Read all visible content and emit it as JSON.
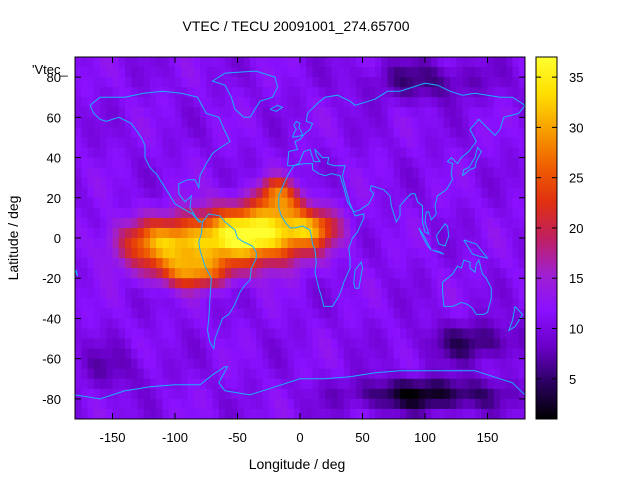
{
  "chart_data": {
    "type": "heatmap",
    "title": "VTEC / TECU 20091001_274.65700",
    "xlabel": "Longitude / deg",
    "ylabel": "Latitude / deg",
    "legend_label": "'Vtec_",
    "legend_position": "top-left",
    "xlim": [
      -180,
      180
    ],
    "ylim": [
      -90,
      90
    ],
    "x_ticks": [
      -150,
      -100,
      -50,
      0,
      50,
      100,
      150
    ],
    "y_ticks": [
      -80,
      -60,
      -40,
      -20,
      0,
      20,
      40,
      60,
      80
    ],
    "colorbar": {
      "range": [
        1,
        37
      ],
      "ticks": [
        5,
        10,
        15,
        20,
        25,
        30,
        35
      ],
      "palette": [
        "#000000",
        "#2b0060",
        "#6a00c8",
        "#8a10ff",
        "#a020d0",
        "#c02060",
        "#e03010",
        "#f06000",
        "#f8a000",
        "#ffe000",
        "#ffff30"
      ]
    },
    "grid_step_deg": 5,
    "hotspots": [
      {
        "lon": -35,
        "lat": 2,
        "peak": 27,
        "sx": 45,
        "sy": 14
      },
      {
        "lon": -105,
        "lat": -3,
        "peak": 19,
        "sx": 40,
        "sy": 12
      },
      {
        "lon": -85,
        "lat": -17,
        "peak": 14,
        "sx": 30,
        "sy": 8
      },
      {
        "lon": -15,
        "lat": 18,
        "peak": 10,
        "sx": 18,
        "sy": 8
      },
      {
        "lon": 10,
        "lat": 5,
        "peak": 10,
        "sx": 20,
        "sy": 8
      },
      {
        "lon": -20,
        "lat": 25,
        "peak": 8,
        "sx": 12,
        "sy": 6
      }
    ],
    "coolspots": [
      {
        "lon": 100,
        "lat": -78,
        "depth": 9,
        "sx": 60,
        "sy": 8
      },
      {
        "lon": 140,
        "lat": -52,
        "depth": 6,
        "sx": 40,
        "sy": 10
      },
      {
        "lon": 100,
        "lat": 78,
        "depth": 5,
        "sx": 50,
        "sy": 10
      },
      {
        "lon": -150,
        "lat": -65,
        "depth": 3,
        "sx": 30,
        "sy": 12
      }
    ],
    "background_level": 11
  },
  "colors": {
    "coastline": "#1ab0ff",
    "axis": "#000000"
  }
}
